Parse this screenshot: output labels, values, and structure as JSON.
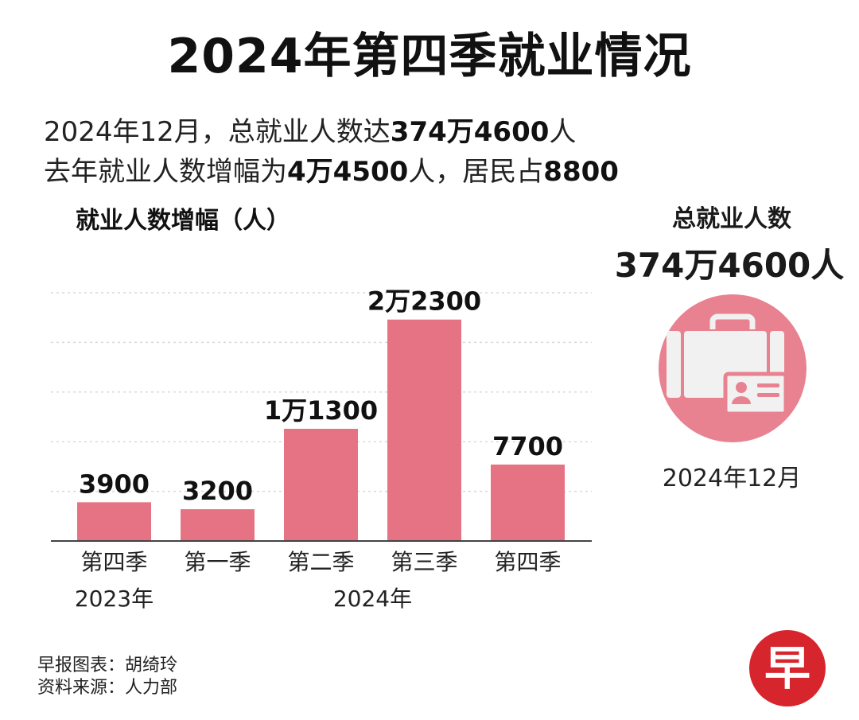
{
  "title": "2024年第四季就业情况",
  "summary": {
    "line1_pre": "2024年12月，总就业人数达",
    "line1_value": "374万4600",
    "line1_post": "人",
    "line2_pre": "去年就业人数增幅为",
    "line2_value": "4万4500",
    "line2_mid": "人，居民占",
    "line2_value2": "8800"
  },
  "right_panel": {
    "title": "总就业人数",
    "value": "374万4600人",
    "date": "2024年12月",
    "icon": "briefcase-id-card-icon"
  },
  "footer": {
    "chart_credit": "早报图表：胡绮玲",
    "source": "资料来源：人力部"
  },
  "logo": {
    "char": "早",
    "color": "#d7252d"
  },
  "colors": {
    "bar": "#e57383",
    "circle": "#e88291"
  },
  "chart_data": {
    "type": "bar",
    "title": "",
    "ylabel": "就业人数增幅（人）",
    "categories": [
      "第四季",
      "第一季",
      "第二季",
      "第三季",
      "第四季"
    ],
    "groups": [
      {
        "label": "2023年",
        "category_indices": [
          0
        ]
      },
      {
        "label": "2024年",
        "category_indices": [
          1,
          2,
          3,
          4
        ]
      }
    ],
    "values": [
      3900,
      3200,
      11300,
      22300,
      7700
    ],
    "value_labels": [
      "3900",
      "3200",
      "1万1300",
      "2万2300",
      "7700"
    ],
    "ylim": [
      0,
      25000
    ],
    "grid": true
  }
}
